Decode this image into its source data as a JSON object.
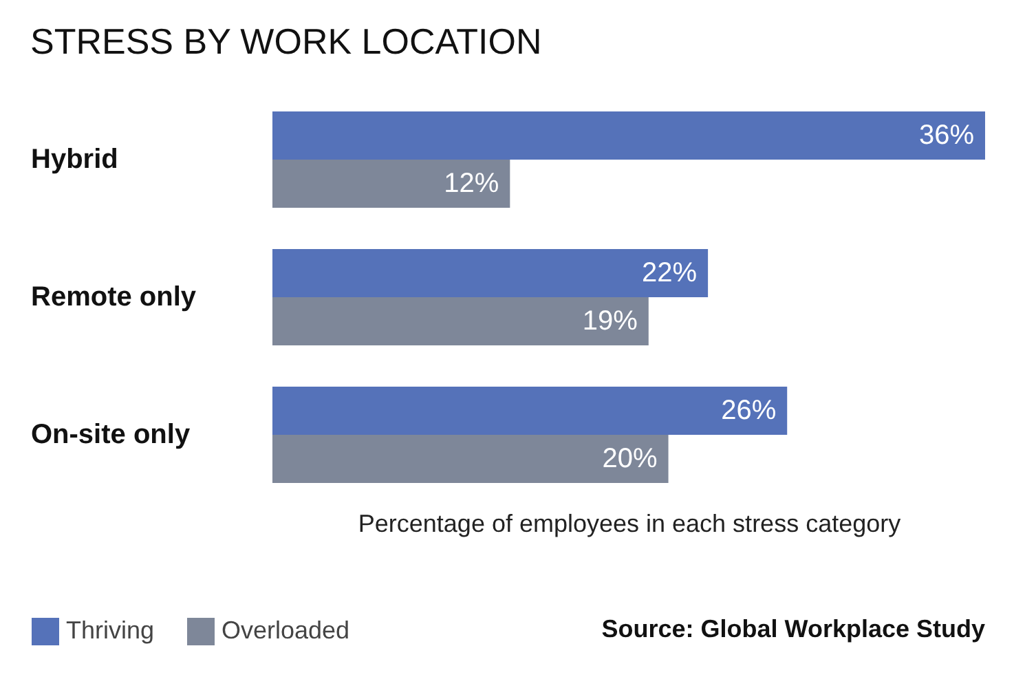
{
  "chart_data": {
    "type": "bar",
    "orientation": "horizontal",
    "title": "STRESS BY WORK LOCATION",
    "xlabel": "Percentage of employees in each stress category",
    "categories": [
      "Hybrid",
      "Remote only",
      "On-site only"
    ],
    "series": [
      {
        "name": "Thriving",
        "color": "#5572b9",
        "values": [
          36,
          22,
          26
        ],
        "value_labels": [
          "36%",
          "22%",
          "26%"
        ]
      },
      {
        "name": "Overloaded",
        "color": "#7e8799",
        "values": [
          12,
          19,
          20
        ],
        "value_labels": [
          "12%",
          "19%",
          "20%"
        ]
      }
    ],
    "annotations": [
      "Source: Global Workplace Study"
    ],
    "legend": "bottom left",
    "tick_labels": "y",
    "grid": false
  }
}
